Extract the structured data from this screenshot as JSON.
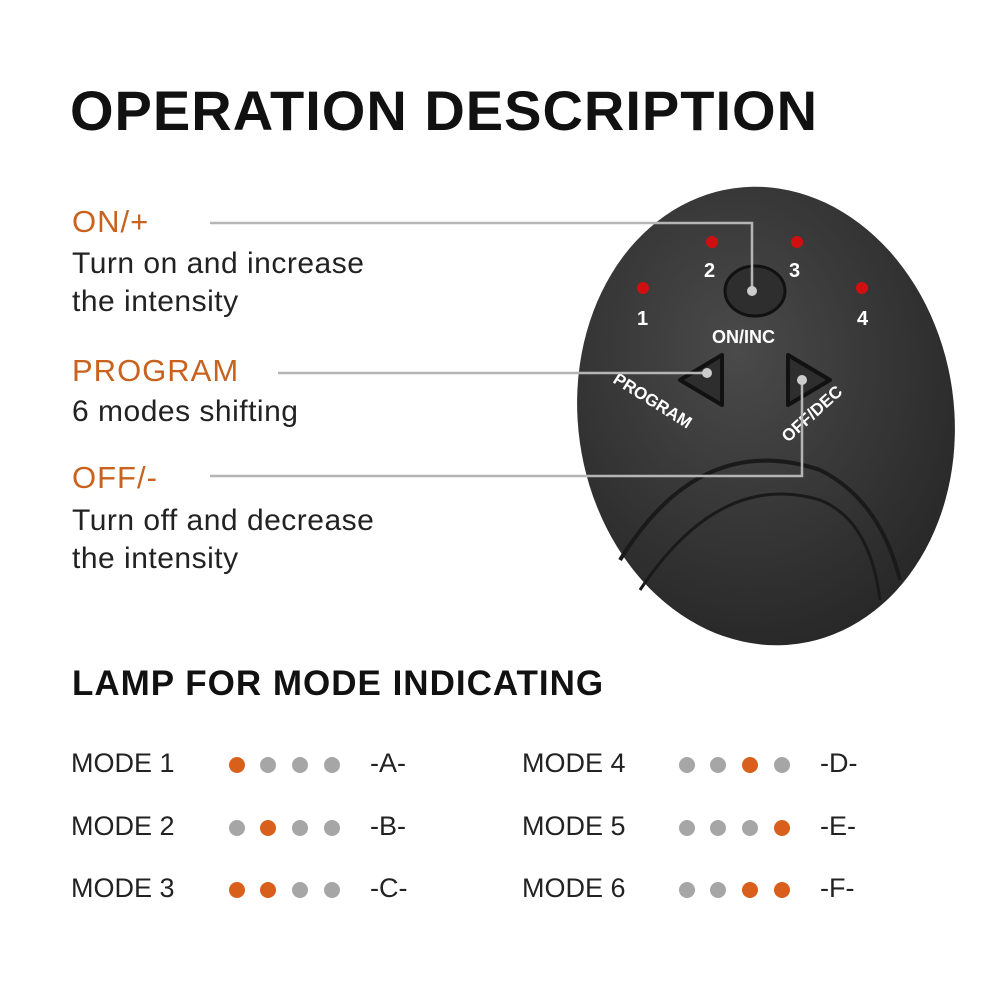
{
  "title": "OPERATION DESCRIPTION",
  "colors": {
    "accent": "#c8621f",
    "dot_on": "#d8601c",
    "dot_off": "#a6a6a6",
    "device": "#3a3a3a",
    "led": "#d01010"
  },
  "controls": [
    {
      "label": "ON/+",
      "desc": [
        "Turn on and increase",
        "the intensity"
      ]
    },
    {
      "label": "PROGRAM",
      "desc": [
        "6 modes shifting"
      ]
    },
    {
      "label": "OFF/-",
      "desc": [
        "Turn off and decrease",
        "the intensity"
      ]
    }
  ],
  "device": {
    "leds": [
      "1",
      "2",
      "3",
      "4"
    ],
    "on_button": "ON/INC",
    "program_button": "PROGRAM",
    "off_button": "OFF/DEC"
  },
  "lamp_title": "LAMP FOR MODE INDICATING",
  "modes": [
    {
      "name": "MODE 1",
      "lamps": [
        1,
        0,
        0,
        0
      ],
      "code": "-A-"
    },
    {
      "name": "MODE 2",
      "lamps": [
        0,
        1,
        0,
        0
      ],
      "code": "-B-"
    },
    {
      "name": "MODE 3",
      "lamps": [
        1,
        1,
        0,
        0
      ],
      "code": "-C-"
    },
    {
      "name": "MODE 4",
      "lamps": [
        0,
        0,
        1,
        0
      ],
      "code": "-D-"
    },
    {
      "name": "MODE 5",
      "lamps": [
        0,
        0,
        0,
        1
      ],
      "code": "-E-"
    },
    {
      "name": "MODE 6",
      "lamps": [
        0,
        0,
        1,
        1
      ],
      "code": "-F-"
    }
  ]
}
